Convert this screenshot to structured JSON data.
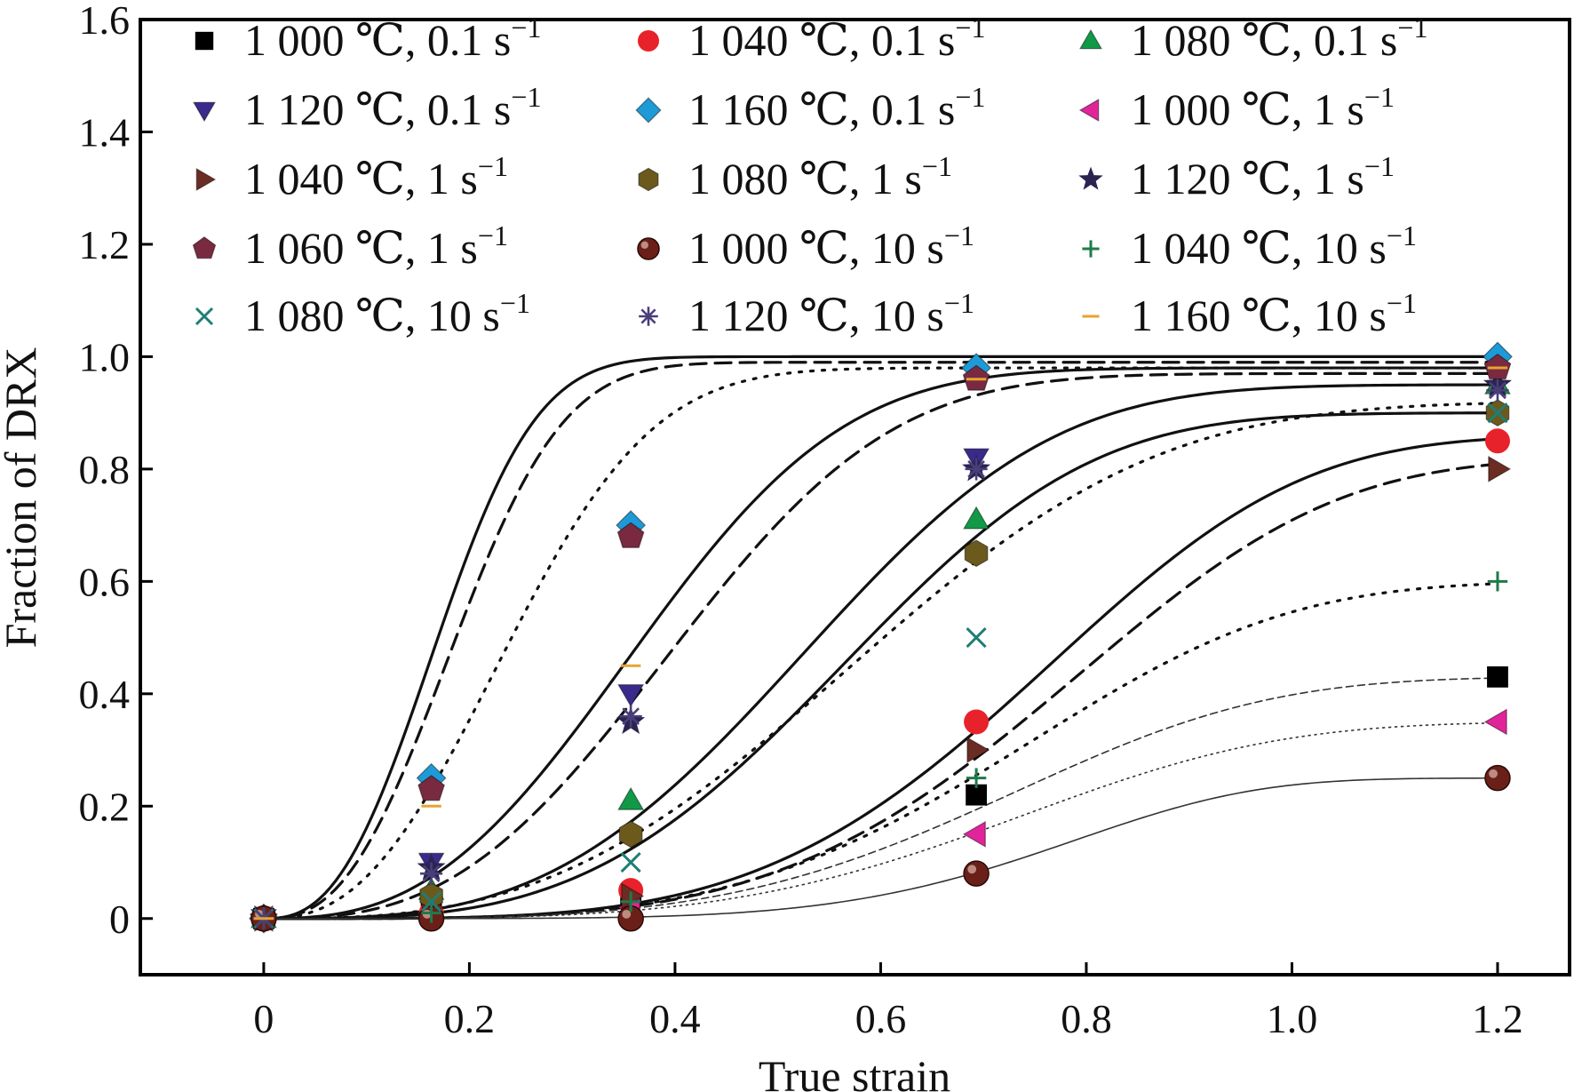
{
  "chart_data": {
    "type": "scatter",
    "xlabel": "True strain",
    "ylabel": "Fraction of DRX",
    "xlim": [
      -0.12,
      1.27
    ],
    "ylim": [
      -0.1,
      1.6
    ],
    "x_ticks": [
      0,
      0.2,
      0.4,
      0.6,
      0.8,
      1.0,
      1.2
    ],
    "x_tick_labels": [
      "0",
      "0.2",
      "0.4",
      "0.6",
      "0.8",
      "1.0",
      "1.2"
    ],
    "y_ticks": [
      0,
      0.2,
      0.4,
      0.6,
      0.8,
      1.0,
      1.2,
      1.4,
      1.6
    ],
    "y_tick_labels": [
      "0",
      "0.2",
      "0.4",
      "0.6",
      "0.8",
      "1.0",
      "1.2",
      "1.4",
      "1.6"
    ],
    "grid": false,
    "legend_position": "top",
    "x": [
      0,
      0.163,
      0.357,
      0.693,
      1.2
    ],
    "series": [
      {
        "name": "1 000 ℃, 0.1 s",
        "unit_exp": "−1",
        "marker": "square",
        "color": "#000000",
        "values": [
          0,
          0.02,
          0.04,
          0.22,
          0.43
        ]
      },
      {
        "name": "1 040 ℃, 0.1 s",
        "unit_exp": "−1",
        "marker": "circle",
        "color": "#e8222a",
        "values": [
          0,
          0.01,
          0.05,
          0.35,
          0.85
        ]
      },
      {
        "name": "1 080 ℃, 0.1 s",
        "unit_exp": "−1",
        "marker": "triangle-up",
        "color": "#119947",
        "values": [
          0,
          0.05,
          0.21,
          0.71,
          0.95
        ]
      },
      {
        "name": "1 120 ℃, 0.1 s",
        "unit_exp": "−1",
        "marker": "triangle-down",
        "color": "#3a2a8c",
        "values": [
          0,
          0.1,
          0.4,
          0.82,
          0.97
        ]
      },
      {
        "name": "1 160 ℃, 0.1 s",
        "unit_exp": "−1",
        "marker": "diamond",
        "color": "#1e9ad6",
        "values": [
          0,
          0.25,
          0.7,
          0.98,
          1.0
        ]
      },
      {
        "name": "1 000 ℃, 1 s",
        "unit_exp": "−1",
        "marker": "triangle-left",
        "color": "#e2249a",
        "values": [
          0,
          0.01,
          0.02,
          0.15,
          0.35
        ]
      },
      {
        "name": "1 040 ℃, 1 s",
        "unit_exp": "−1",
        "marker": "triangle-right",
        "color": "#6b2c24",
        "values": [
          0,
          0.02,
          0.04,
          0.3,
          0.8
        ]
      },
      {
        "name": "1 080 ℃, 1 s",
        "unit_exp": "−1",
        "marker": "hexagon",
        "color": "#6b5a1c",
        "values": [
          0,
          0.04,
          0.15,
          0.65,
          0.9
        ]
      },
      {
        "name": "1 120 ℃, 1 s",
        "unit_exp": "−1",
        "marker": "star",
        "color": "#2a2450",
        "values": [
          0,
          0.09,
          0.35,
          0.8,
          0.95
        ]
      },
      {
        "name": "1 060 ℃, 1 s",
        "unit_exp": "−1",
        "marker": "pentagon",
        "color": "#7a2a40",
        "values": [
          0,
          0.23,
          0.68,
          0.96,
          0.98
        ]
      },
      {
        "name": "1 000 ℃, 10 s",
        "unit_exp": "−1",
        "marker": "ball",
        "color": "#6a2018",
        "values": [
          0,
          0.0,
          0.0,
          0.08,
          0.25
        ]
      },
      {
        "name": "1 040 ℃, 10 s",
        "unit_exp": "−1",
        "marker": "plus",
        "color": "#1f7a4a",
        "values": [
          0,
          0.01,
          0.03,
          0.25,
          0.6
        ]
      },
      {
        "name": "1 080 ℃, 10 s",
        "unit_exp": "−1",
        "marker": "x",
        "color": "#1f7d74",
        "values": [
          0,
          0.03,
          0.1,
          0.5,
          0.9
        ]
      },
      {
        "name": "1 120 ℃, 10 s",
        "unit_exp": "−1",
        "marker": "asterisk",
        "color": "#4a3e7a",
        "values": [
          0,
          0.08,
          0.36,
          0.8,
          0.94
        ]
      },
      {
        "name": "1 160 ℃, 10 s",
        "unit_exp": "−1",
        "marker": "dash",
        "color": "#e8a330",
        "values": [
          0,
          0.2,
          0.45,
          0.96,
          0.98
        ]
      }
    ],
    "fit_curves": [
      {
        "style": "solid",
        "width": 3.2,
        "a": 1.0,
        "k": 70,
        "n": 2.6
      },
      {
        "style": "dashed",
        "width": 3.2,
        "a": 0.99,
        "k": 55,
        "n": 2.6
      },
      {
        "style": "dotted",
        "width": 3.2,
        "a": 0.98,
        "k": 25,
        "n": 2.5
      },
      {
        "style": "solid",
        "width": 3.2,
        "a": 0.98,
        "k": 10.5,
        "n": 2.7
      },
      {
        "style": "dashed",
        "width": 3.2,
        "a": 0.97,
        "k": 9,
        "n": 2.8
      },
      {
        "style": "solid",
        "width": 3.2,
        "a": 0.95,
        "k": 5.4,
        "n": 3.2
      },
      {
        "style": "solid",
        "width": 3.2,
        "a": 0.9,
        "k": 4.9,
        "n": 3.4
      },
      {
        "style": "dotted",
        "width": 3.2,
        "a": 0.92,
        "k": 3.4,
        "n": 2.9
      },
      {
        "style": "solid",
        "width": 3.2,
        "a": 0.86,
        "k": 2.3,
        "n": 4.2
      },
      {
        "style": "dashed",
        "width": 3.2,
        "a": 0.82,
        "k": 2.0,
        "n": 4.2
      },
      {
        "style": "dotted",
        "width": 3.2,
        "a": 0.6,
        "k": 2.4,
        "n": 4.0
      },
      {
        "style": "dashed",
        "width": 1.6,
        "a": 0.43,
        "k": 2.6,
        "n": 4.0
      },
      {
        "style": "dotted",
        "width": 1.6,
        "a": 0.35,
        "k": 2.5,
        "n": 4.0
      },
      {
        "style": "solid",
        "width": 1.6,
        "a": 0.25,
        "k": 3.0,
        "n": 5.5
      }
    ]
  }
}
